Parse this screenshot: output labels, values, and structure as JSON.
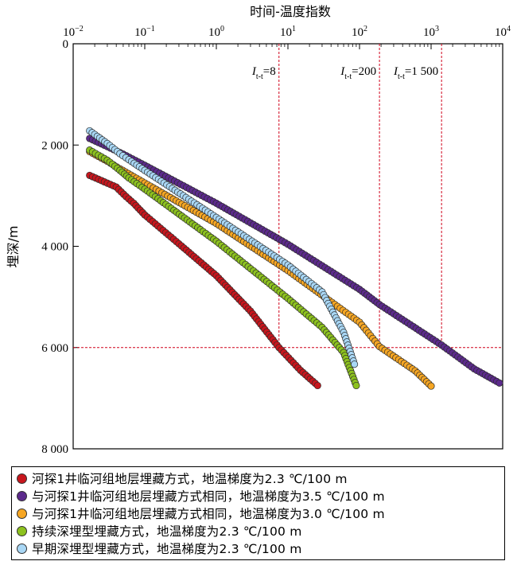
{
  "chart_data": {
    "type": "scatter",
    "xlabel": "时间-温度指数",
    "ylabel": "埋深/m",
    "x_scale": "log",
    "xlim": [
      0.01,
      10000
    ],
    "ylim": [
      0,
      8000
    ],
    "y_inverted": true,
    "x_ticks": [
      {
        "value": 0.01,
        "base": "10",
        "exp": "−2"
      },
      {
        "value": 0.1,
        "base": "10",
        "exp": "−1"
      },
      {
        "value": 1,
        "base": "10",
        "exp": "0"
      },
      {
        "value": 10,
        "base": "10",
        "exp": "1"
      },
      {
        "value": 100,
        "base": "10",
        "exp": "2"
      },
      {
        "value": 1000,
        "base": "10",
        "exp": "3"
      },
      {
        "value": 10000,
        "base": "10",
        "exp": "4"
      }
    ],
    "y_ticks": [
      {
        "value": 0,
        "label": "0"
      },
      {
        "value": 2000,
        "label": "2 000"
      },
      {
        "value": 4000,
        "label": "4 000"
      },
      {
        "value": 6000,
        "label": "6 000"
      },
      {
        "value": 8000,
        "label": "8 000"
      }
    ],
    "reference_lines": [
      {
        "x": 7.5,
        "label_main": "I",
        "label_sub": "t-t",
        "label_value": "=8"
      },
      {
        "x": 190,
        "label_main": "I",
        "label_sub": "t-t",
        "label_value": "=200"
      },
      {
        "x": 1400,
        "label_main": "I",
        "label_sub": "t-t",
        "label_value": "=1 500"
      }
    ],
    "horizontal_reference": {
      "y": 6000
    },
    "legend_position": "bottom",
    "series": [
      {
        "name": "河探1井临河组地层埋藏方式，地温梯度为2.3 ℃/100 m",
        "color": "#c8161d",
        "points": [
          [
            0.017,
            2600
          ],
          [
            0.04,
            2830
          ],
          [
            0.055,
            3020
          ],
          [
            0.07,
            3150
          ],
          [
            0.1,
            3380
          ],
          [
            0.3,
            3950
          ],
          [
            1,
            4580
          ],
          [
            3,
            5280
          ],
          [
            7.5,
            6000
          ],
          [
            15,
            6450
          ],
          [
            26,
            6750
          ]
        ]
      },
      {
        "name": "与河探1井临河组地层埋藏方式相同，地温梯度为3.5 ℃/100 m",
        "color": "#5c2a8c",
        "points": [
          [
            0.017,
            1870
          ],
          [
            0.03,
            2030
          ],
          [
            0.05,
            2180
          ],
          [
            0.1,
            2400
          ],
          [
            1,
            3150
          ],
          [
            10,
            3960
          ],
          [
            100,
            4850
          ],
          [
            190,
            5150
          ],
          [
            1400,
            5950
          ],
          [
            4000,
            6420
          ],
          [
            9000,
            6700
          ]
        ]
      },
      {
        "name": "与河探1井临河组地层埋藏方式相同，地温梯度为3.0 ℃/100 m",
        "color": "#f6a623",
        "points": [
          [
            0.017,
            2130
          ],
          [
            0.03,
            2320
          ],
          [
            0.045,
            2470
          ],
          [
            0.1,
            2750
          ],
          [
            1,
            3550
          ],
          [
            10,
            4480
          ],
          [
            100,
            5500
          ],
          [
            190,
            5980
          ],
          [
            600,
            6460
          ],
          [
            1000,
            6760
          ]
        ]
      },
      {
        "name": "持续深埋型埋藏方式，地温梯度为2.3 ℃/100 m",
        "color": "#8dc21f",
        "points": [
          [
            0.017,
            2100
          ],
          [
            0.03,
            2300
          ],
          [
            0.045,
            2500
          ],
          [
            0.06,
            2650
          ],
          [
            0.1,
            2870
          ],
          [
            1,
            3900
          ],
          [
            10,
            5030
          ],
          [
            30,
            5600
          ],
          [
            60,
            6100
          ],
          [
            90,
            6750
          ]
        ]
      },
      {
        "name": "早期深埋型埋藏方式，地温梯度为2.3 ℃/100 m",
        "color": "#a9d7f5",
        "points": [
          [
            0.017,
            1720
          ],
          [
            0.03,
            1970
          ],
          [
            0.045,
            2170
          ],
          [
            0.06,
            2290
          ],
          [
            0.1,
            2500
          ],
          [
            1,
            3430
          ],
          [
            10,
            4370
          ],
          [
            30,
            4900
          ],
          [
            60,
            5700
          ],
          [
            85,
            6330
          ]
        ]
      }
    ]
  },
  "legend_items": [
    {
      "label": "河探1井临河组地层埋藏方式，地温梯度为2.3 ℃/100 m",
      "color": "#c8161d"
    },
    {
      "label": "与河探1井临河组地层埋藏方式相同，地温梯度为3.5 ℃/100 m",
      "color": "#5c2a8c"
    },
    {
      "label": "与河探1井临河组地层埋藏方式相同，地温梯度为3.0 ℃/100 m",
      "color": "#f6a623"
    },
    {
      "label": "持续深埋型埋藏方式，地温梯度为2.3 ℃/100 m",
      "color": "#8dc21f"
    },
    {
      "label": "早期深埋型埋藏方式，地温梯度为2.3 ℃/100 m",
      "color": "#a9d7f5"
    }
  ]
}
